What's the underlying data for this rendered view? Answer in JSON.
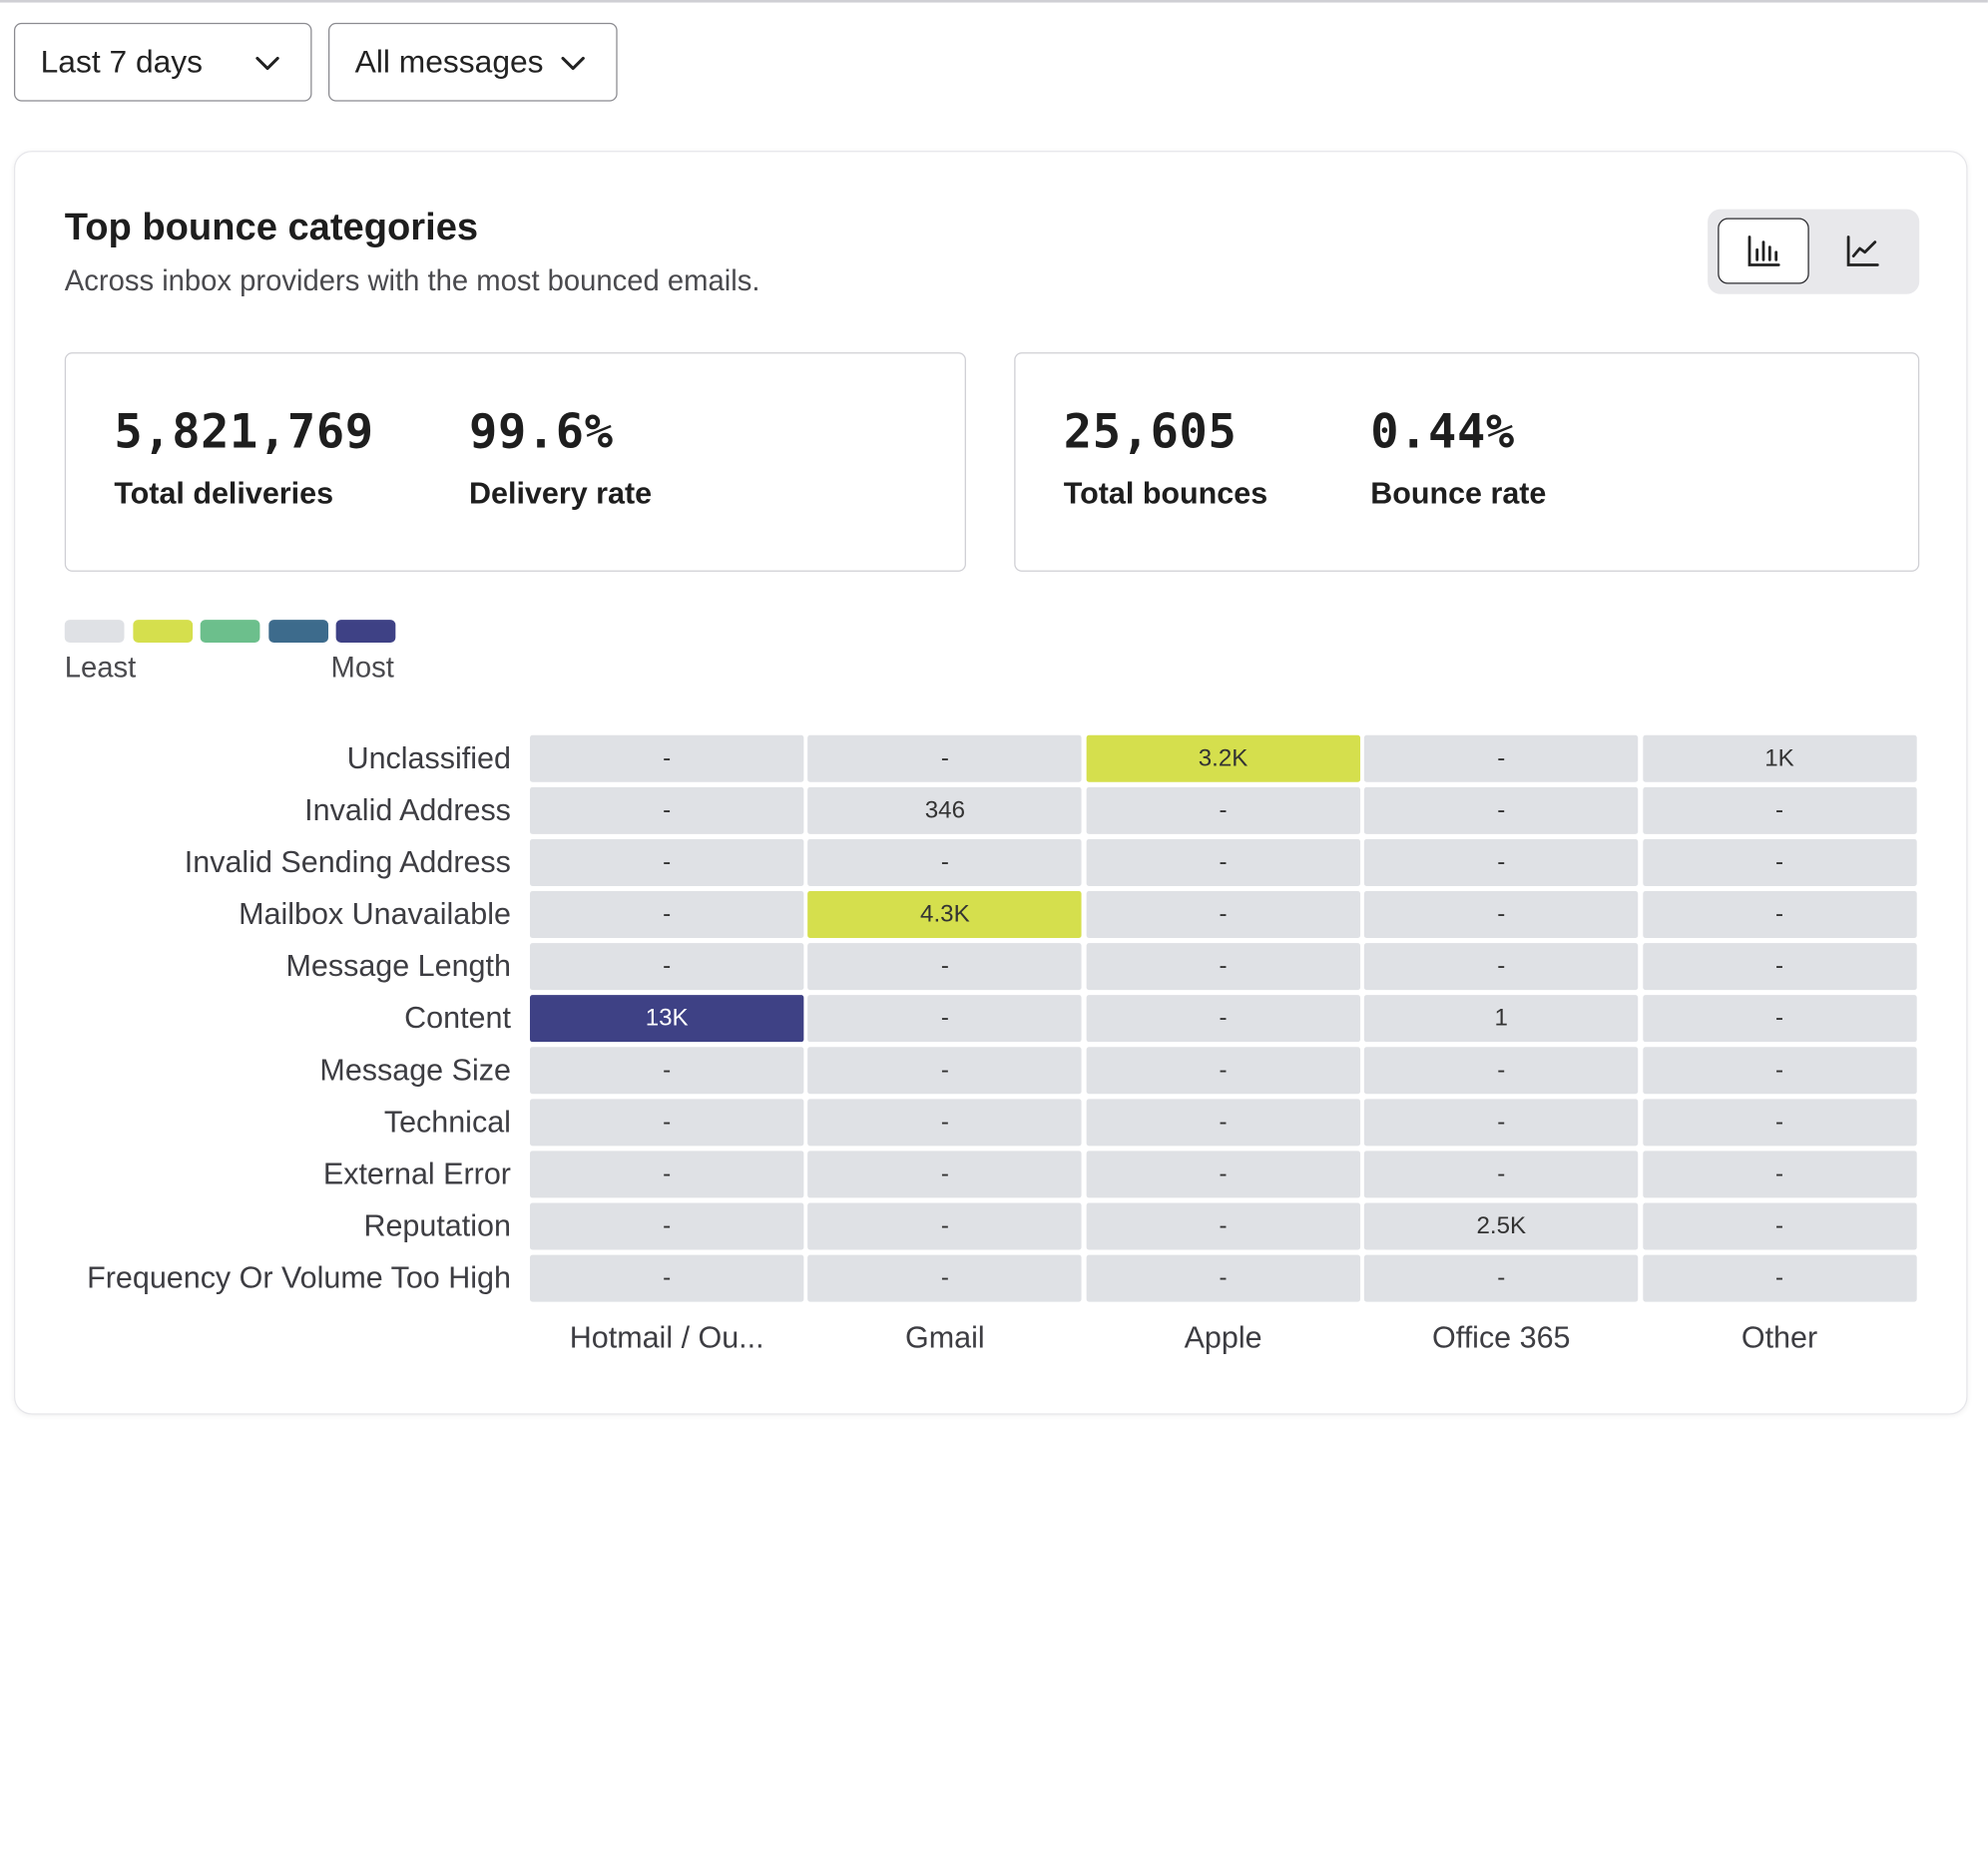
{
  "filters": {
    "date_range": "Last 7 days",
    "message_filter": "All messages"
  },
  "card": {
    "title": "Top bounce categories",
    "subtitle": "Across inbox providers with the most bounced emails.",
    "view_toggle": [
      "bar-chart-icon",
      "line-chart-icon"
    ],
    "active_view": "bar-chart-icon"
  },
  "stats": {
    "deliveries": {
      "total_value": "5,821,769",
      "total_label": "Total deliveries",
      "rate_value": "99.6%",
      "rate_label": "Delivery rate"
    },
    "bounces": {
      "total_value": "25,605",
      "total_label": "Total bounces",
      "rate_value": "0.44%",
      "rate_label": "Bounce rate"
    }
  },
  "legend": {
    "colors": [
      "#dfe1e5",
      "#d5df4d",
      "#6cbf8c",
      "#3d6b8c",
      "#3e4185"
    ],
    "least_label": "Least",
    "most_label": "Most"
  },
  "chart_data": {
    "type": "heatmap",
    "rows": [
      "Unclassified",
      "Invalid Address",
      "Invalid Sending Address",
      "Mailbox Unavailable",
      "Message Length",
      "Content",
      "Message Size",
      "Technical",
      "External Error",
      "Reputation",
      "Frequency Or Volume Too High"
    ],
    "columns": [
      "Hotmail / Ou...",
      "Gmail",
      "Apple",
      "Office 365",
      "Other"
    ],
    "cells": [
      [
        "-",
        "-",
        "3.2K",
        "-",
        "1K"
      ],
      [
        "-",
        "346",
        "-",
        "-",
        "-"
      ],
      [
        "-",
        "-",
        "-",
        "-",
        "-"
      ],
      [
        "-",
        "4.3K",
        "-",
        "-",
        "-"
      ],
      [
        "-",
        "-",
        "-",
        "-",
        "-"
      ],
      [
        "13K",
        "-",
        "-",
        "1",
        "-"
      ],
      [
        "-",
        "-",
        "-",
        "-",
        "-"
      ],
      [
        "-",
        "-",
        "-",
        "-",
        "-"
      ],
      [
        "-",
        "-",
        "-",
        "-",
        "-"
      ],
      [
        "-",
        "-",
        "-",
        "2.5K",
        "-"
      ],
      [
        "-",
        "-",
        "-",
        "-",
        "-"
      ]
    ],
    "levels": [
      [
        0,
        0,
        1,
        0,
        0
      ],
      [
        0,
        0,
        0,
        0,
        0
      ],
      [
        0,
        0,
        0,
        0,
        0
      ],
      [
        0,
        1,
        0,
        0,
        0
      ],
      [
        0,
        0,
        0,
        0,
        0
      ],
      [
        4,
        0,
        0,
        0,
        0
      ],
      [
        0,
        0,
        0,
        0,
        0
      ],
      [
        0,
        0,
        0,
        0,
        0
      ],
      [
        0,
        0,
        0,
        0,
        0
      ],
      [
        0,
        0,
        0,
        0,
        0
      ],
      [
        0,
        0,
        0,
        0,
        0
      ]
    ],
    "scale_colors": [
      "#dfe1e5",
      "#d5df4d",
      "#6cbf8c",
      "#3d6b8c",
      "#3e4185"
    ]
  }
}
